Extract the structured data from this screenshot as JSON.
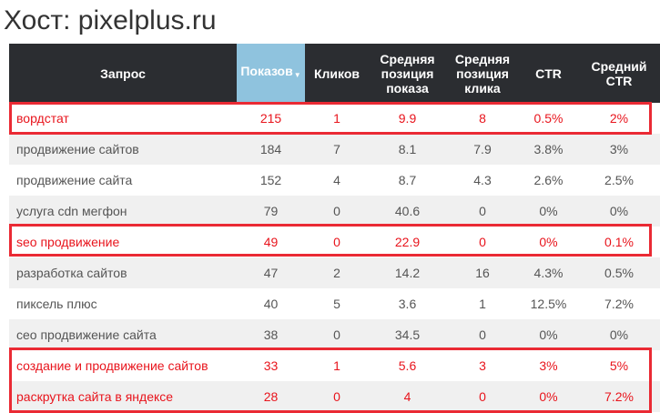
{
  "page": {
    "host_title": "Хост: pixelplus.ru"
  },
  "table": {
    "headers": {
      "query": "Запрос",
      "impressions": "Показов",
      "clicks": "Кликов",
      "avg_impression_position": "Средняя позиция показа",
      "avg_click_position": "Средняя позиция клика",
      "ctr": "CTR",
      "avg_ctr": "Средний CTR"
    },
    "sorted_column": "impressions",
    "rows": [
      {
        "query": "вордстат",
        "impressions": "215",
        "clicks": "1",
        "avg_impression_position": "9.9",
        "avg_click_position": "8",
        "ctr": "0.5%",
        "avg_ctr": "2%",
        "highlighted": true
      },
      {
        "query": "продвижение сайтов",
        "impressions": "184",
        "clicks": "7",
        "avg_impression_position": "8.1",
        "avg_click_position": "7.9",
        "ctr": "3.8%",
        "avg_ctr": "3%",
        "highlighted": false
      },
      {
        "query": "продвижение сайта",
        "impressions": "152",
        "clicks": "4",
        "avg_impression_position": "8.7",
        "avg_click_position": "4.3",
        "ctr": "2.6%",
        "avg_ctr": "2.5%",
        "highlighted": false
      },
      {
        "query": "услуга cdn мегфон",
        "impressions": "79",
        "clicks": "0",
        "avg_impression_position": "40.6",
        "avg_click_position": "0",
        "ctr": "0%",
        "avg_ctr": "0%",
        "highlighted": false
      },
      {
        "query": "seo продвижение",
        "impressions": "49",
        "clicks": "0",
        "avg_impression_position": "22.9",
        "avg_click_position": "0",
        "ctr": "0%",
        "avg_ctr": "0.1%",
        "highlighted": true
      },
      {
        "query": "разработка сайтов",
        "impressions": "47",
        "clicks": "2",
        "avg_impression_position": "14.2",
        "avg_click_position": "16",
        "ctr": "4.3%",
        "avg_ctr": "0.5%",
        "highlighted": false
      },
      {
        "query": "пиксель плюс",
        "impressions": "40",
        "clicks": "5",
        "avg_impression_position": "3.6",
        "avg_click_position": "1",
        "ctr": "12.5%",
        "avg_ctr": "7.2%",
        "highlighted": false
      },
      {
        "query": "сео продвижение сайта",
        "impressions": "38",
        "clicks": "0",
        "avg_impression_position": "34.5",
        "avg_click_position": "0",
        "ctr": "0%",
        "avg_ctr": "0%",
        "highlighted": false
      },
      {
        "query": "создание и продвижение сайтов",
        "impressions": "33",
        "clicks": "1",
        "avg_impression_position": "5.6",
        "avg_click_position": "3",
        "ctr": "3%",
        "avg_ctr": "5%",
        "highlighted": true
      },
      {
        "query": "раскрутка сайта в яндексе",
        "impressions": "28",
        "clicks": "0",
        "avg_impression_position": "4",
        "avg_click_position": "0",
        "ctr": "0%",
        "avg_ctr": "7.2%",
        "highlighted": true
      }
    ]
  },
  "colors": {
    "header_bg": "#2b2d31",
    "sorted_header_bg": "#8fc3de",
    "highlight_text": "#e8141c",
    "highlight_border": "#ea2a34",
    "zebra_row": "#f0f0f0"
  }
}
